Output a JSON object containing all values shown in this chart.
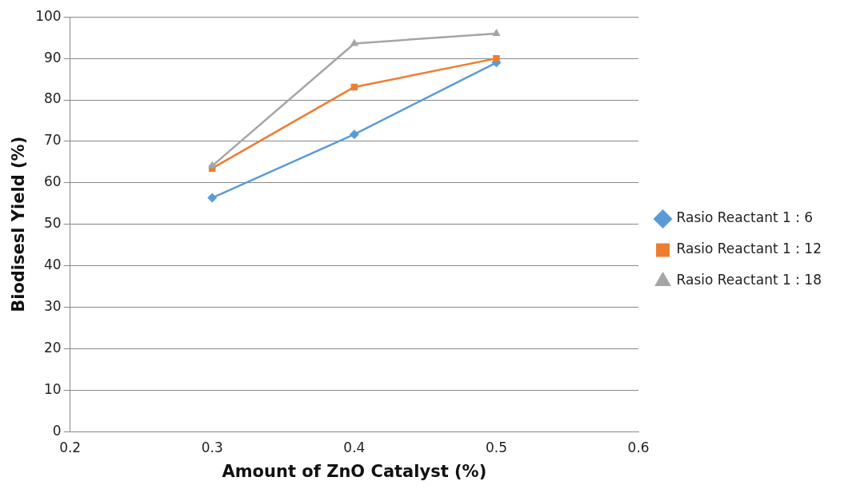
{
  "chart_data": {
    "type": "line",
    "xlabel": "Amount of ZnO Catalyst (%)",
    "ylabel": "Biodisesl Yield (%)",
    "x": [
      0.3,
      0.4,
      0.5
    ],
    "series": [
      {
        "name": "Rasio Reactant 1 : 6",
        "color": "#5b9bd5",
        "marker": "diamond",
        "values": [
          56.4,
          71.7,
          89.0
        ]
      },
      {
        "name": "Rasio Reactant 1 : 12",
        "color": "#ed7d31",
        "marker": "square",
        "values": [
          63.5,
          83.1,
          90.0
        ]
      },
      {
        "name": "Rasio Reactant 1 : 18",
        "color": "#a5a5a5",
        "marker": "triangle",
        "values": [
          64.1,
          93.6,
          96.0
        ]
      }
    ],
    "xlim": [
      0.2,
      0.6
    ],
    "xticks": [
      0.2,
      0.3,
      0.4,
      0.5,
      0.6
    ],
    "ylim": [
      0,
      100
    ],
    "yticks": [
      0,
      10,
      20,
      30,
      40,
      50,
      60,
      70,
      80,
      90,
      100
    ],
    "grid": "y",
    "legend": "right",
    "line_style": "solid"
  }
}
